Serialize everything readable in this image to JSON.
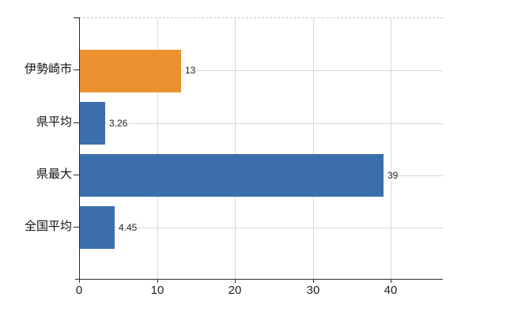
{
  "chart_data": {
    "type": "bar",
    "orientation": "horizontal",
    "title": "",
    "xlabel": "",
    "ylabel": "",
    "categories": [
      "伊勢崎市",
      "県平均",
      "県最大",
      "全国平均"
    ],
    "values": [
      13,
      3.26,
      39,
      4.45
    ],
    "value_labels": [
      "13",
      "3.26",
      "39",
      "4.45"
    ],
    "bar_colors": [
      "#EB9130",
      "#3C6EAB",
      "#3C6EAB",
      "#3C6EAB"
    ],
    "xlim": [
      0,
      46.7
    ],
    "xticks": [
      0,
      10,
      20,
      30,
      40
    ],
    "xtick_labels": [
      "0",
      "10",
      "20",
      "30",
      "40"
    ],
    "grid": "on",
    "legend": "none",
    "colors": {
      "background": "#ffffff",
      "axis": "#2b2b2b",
      "gridline_vertical": "#d9d9d9",
      "gridline_horizontal": "#d5dacf",
      "plot_top_border_dashed": "#c6c6c6",
      "tick_label_text": "#222222",
      "category_label_text": "#111111",
      "value_label_text": "#222222"
    }
  }
}
